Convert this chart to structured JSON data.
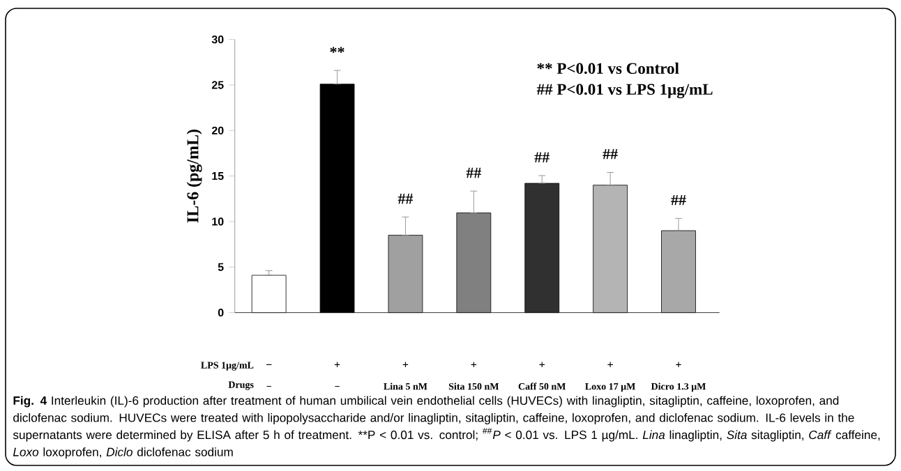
{
  "chart_data": {
    "type": "bar",
    "ylabel": "IL-6 (pg/mL)",
    "categories": [
      "−",
      "−",
      "Lina 5 nM",
      "Sita 150 nM",
      "Caff 50 nM",
      "Loxo 17 μM",
      "Dicro 1.3 μM"
    ],
    "values": [
      4.1,
      25.1,
      8.5,
      10.95,
      14.2,
      14.0,
      9.0
    ],
    "errors": [
      [
        4.1,
        4.6
      ],
      [
        25.1,
        26.6
      ],
      [
        8.5,
        10.5
      ],
      [
        10.95,
        13.35
      ],
      [
        14.2,
        15.05
      ],
      [
        14.0,
        15.4
      ],
      [
        9.0,
        10.35
      ]
    ],
    "colors": [
      "#ffffff",
      "#000000",
      "#a0a0a0",
      "#808080",
      "#303030",
      "#b4b4b4",
      "#a8a8a8"
    ],
    "value_labels": [
      null,
      "**",
      "##",
      "##",
      "##",
      "##",
      "##"
    ],
    "ylim": [
      0,
      30
    ],
    "yticks": [
      0,
      5,
      10,
      15,
      20,
      25,
      30
    ],
    "annotations": [
      "** P<0.01 vs Control",
      "##  P<0.01 vs LPS 1μg/mL",
      "LPS 1μg/mL",
      "Drugs",
      "−",
      "+",
      "+",
      "+",
      "+",
      "+",
      "+",
      "**Fig. 4** Interleukin (IL)-6 production after treatment of human umbilical vein endothelial cells (HUVECs) with linagliptin, sitagliptin, caffeine, loxoprofen, and diclofenac sodium. HUVECs were treated with lipopolysaccharide and/or linagliptin, sitagliptin, caffeine, loxoprofen, and diclofenac sodium. IL-6 levels in the supernatants were determined by ELISA after 5 h of treatment. **P < 0.01 vs. control; $^{##}$*P* < 0.01 vs. LPS 1 µg/mL. *Lina* linagliptin, *Sita* sitagliptin, *Caff* caffeine, *Loxo* loxoprofen, *Diclo* diclofenac sodium"
    ]
  }
}
